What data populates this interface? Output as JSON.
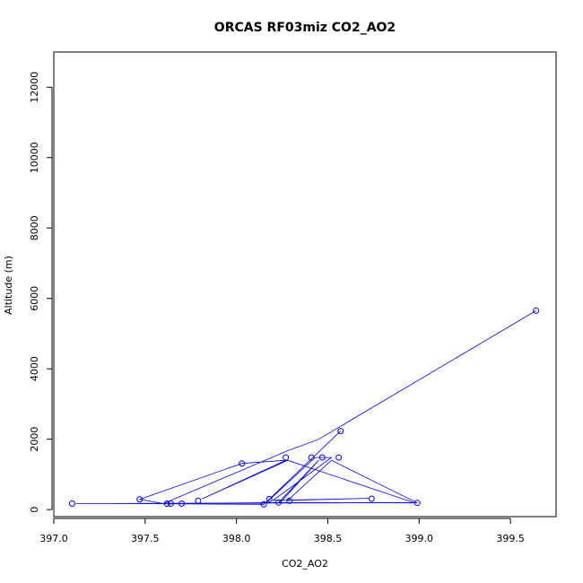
{
  "chart_data": {
    "type": "scatter",
    "title": "ORCAS RF03miz CO2_AO2",
    "xlabel": "CO2_AO2",
    "ylabel": "Altitude (m)",
    "xlim": [
      397.0,
      399.75
    ],
    "ylim": [
      -200,
      13000
    ],
    "xticks": [
      397.0,
      397.5,
      398.0,
      398.5,
      399.0,
      399.5
    ],
    "xtick_labels": [
      "397.0",
      "397.5",
      "398.0",
      "398.5",
      "399.0",
      "399.5"
    ],
    "yticks": [
      0,
      2000,
      4000,
      6000,
      8000,
      10000,
      12000
    ],
    "ytick_labels": [
      "0",
      "2000",
      "4000",
      "6000",
      "8000",
      "10000",
      "12000"
    ],
    "grid": false,
    "colors": {
      "series": "#0000ff",
      "axis": "#000000"
    },
    "series": [
      {
        "marker": "open-circle",
        "points": [
          {
            "x": 399.64,
            "y": 5650
          },
          {
            "x": 398.57,
            "y": 2230
          },
          {
            "x": 398.03,
            "y": 1310
          },
          {
            "x": 398.27,
            "y": 1480
          },
          {
            "x": 398.41,
            "y": 1480
          },
          {
            "x": 398.47,
            "y": 1480
          },
          {
            "x": 398.56,
            "y": 1480
          },
          {
            "x": 397.47,
            "y": 290
          },
          {
            "x": 397.79,
            "y": 250
          },
          {
            "x": 398.18,
            "y": 300
          },
          {
            "x": 398.29,
            "y": 250
          },
          {
            "x": 398.74,
            "y": 310
          },
          {
            "x": 398.23,
            "y": 200
          },
          {
            "x": 398.99,
            "y": 190
          },
          {
            "x": 397.62,
            "y": 170
          },
          {
            "x": 397.64,
            "y": 170
          },
          {
            "x": 397.7,
            "y": 170
          },
          {
            "x": 397.1,
            "y": 170
          },
          {
            "x": 398.15,
            "y": 150
          }
        ],
        "path": [
          {
            "x": 399.64,
            "y": 5650
          },
          {
            "x": 398.45,
            "y": 2000
          },
          {
            "x": 398.27,
            "y": 1650
          },
          {
            "x": 397.6,
            "y": 170
          },
          {
            "x": 397.47,
            "y": 290
          },
          {
            "x": 398.03,
            "y": 1310
          },
          {
            "x": 398.27,
            "y": 1400
          },
          {
            "x": 397.81,
            "y": 300
          },
          {
            "x": 398.28,
            "y": 1400
          },
          {
            "x": 398.97,
            "y": 200
          },
          {
            "x": 397.12,
            "y": 170
          },
          {
            "x": 398.16,
            "y": 180
          },
          {
            "x": 398.43,
            "y": 1480
          },
          {
            "x": 398.52,
            "y": 1480
          },
          {
            "x": 398.2,
            "y": 260
          },
          {
            "x": 398.72,
            "y": 320
          },
          {
            "x": 398.28,
            "y": 260
          },
          {
            "x": 398.52,
            "y": 1400
          },
          {
            "x": 398.99,
            "y": 190
          },
          {
            "x": 398.23,
            "y": 200
          },
          {
            "x": 398.45,
            "y": 1400
          },
          {
            "x": 398.24,
            "y": 200
          },
          {
            "x": 397.62,
            "y": 170
          },
          {
            "x": 397.4,
            "y": 170
          },
          {
            "x": 398.15,
            "y": 150
          },
          {
            "x": 398.57,
            "y": 2230
          }
        ]
      }
    ]
  }
}
